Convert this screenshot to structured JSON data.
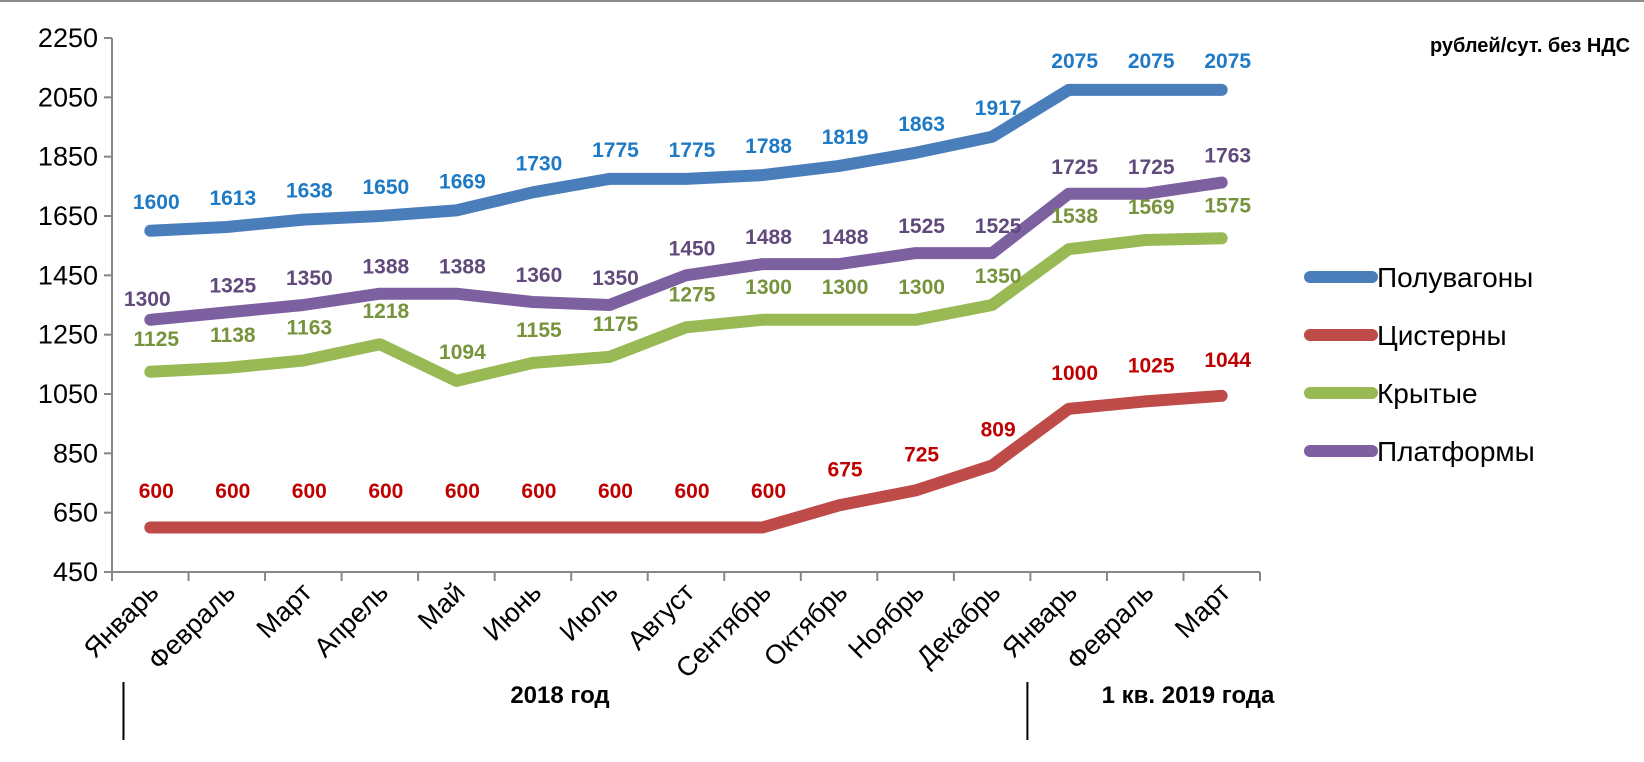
{
  "chart_data": {
    "type": "line",
    "unit_label": "рублей/сут. без НДС",
    "categories": [
      "Январь",
      "Февраль",
      "Март",
      "Апрель",
      "Май",
      "Июнь",
      "Июль",
      "Август",
      "Сентябрь",
      "Октябрь",
      "Ноябрь",
      "Декабрь",
      "Январь",
      "Февраль",
      "Март"
    ],
    "groups": [
      {
        "label": "2018 год",
        "from": 0,
        "to": 11
      },
      {
        "label": "1 кв. 2019 года",
        "from": 12,
        "to": 14
      }
    ],
    "ylim": [
      450,
      2250
    ],
    "yticks": [
      450,
      650,
      850,
      1050,
      1250,
      1450,
      1650,
      1850,
      2050,
      2250
    ],
    "grid": false,
    "legend_position": "right",
    "series": [
      {
        "name": "Полувагоны",
        "color": "#4a7ebb",
        "label_color": "#1f7ac6",
        "values": [
          1600,
          1613,
          1638,
          1650,
          1669,
          1730,
          1775,
          1775,
          1788,
          1819,
          1863,
          1917,
          2075,
          2075,
          2075
        ]
      },
      {
        "name": "Цистерны",
        "color": "#be4b48",
        "label_color": "#c00000",
        "values": [
          600,
          600,
          600,
          600,
          600,
          600,
          600,
          600,
          600,
          675,
          725,
          809,
          1000,
          1025,
          1044
        ]
      },
      {
        "name": "Крытые",
        "color": "#98b954",
        "label_color": "#77933c",
        "values": [
          1125,
          1138,
          1163,
          1218,
          1094,
          1155,
          1175,
          1275,
          1300,
          1300,
          1300,
          1350,
          1538,
          1569,
          1575
        ]
      },
      {
        "name": "Платформы",
        "color": "#7d60a0",
        "label_color": "#604a7b",
        "values": [
          1300,
          1325,
          1350,
          1388,
          1388,
          1360,
          1350,
          1450,
          1488,
          1488,
          1525,
          1525,
          1725,
          1725,
          1763
        ]
      }
    ]
  }
}
